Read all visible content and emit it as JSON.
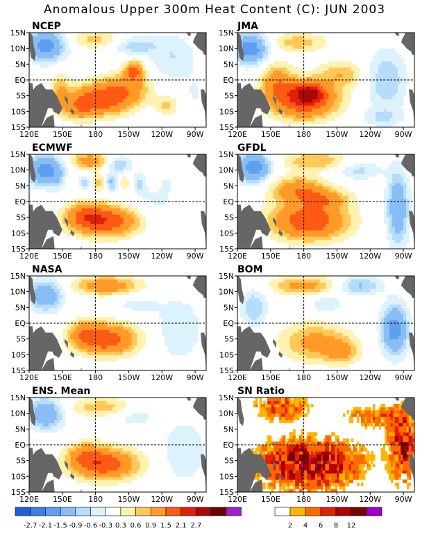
{
  "title": "Anomalous Upper 300m Heat Content (C): JUN 2003",
  "y_ticks": [
    "15N",
    "10N",
    "5N",
    "EQ",
    "5S",
    "10S",
    "15S"
  ],
  "x_ticks": [
    "120E",
    "150E",
    "180",
    "150W",
    "120W",
    "90W"
  ],
  "panels": [
    {
      "name": "NCEP",
      "kind": "ncep"
    },
    {
      "name": "JMA",
      "kind": "jma"
    },
    {
      "name": "ECMWF",
      "kind": "ecmwf"
    },
    {
      "name": "GFDL",
      "kind": "gfdl"
    },
    {
      "name": "NASA",
      "kind": "nasa"
    },
    {
      "name": "BOM",
      "kind": "bom"
    },
    {
      "name": "ENS. Mean",
      "kind": "ens"
    },
    {
      "name": "SN Ratio",
      "kind": "sn"
    }
  ],
  "anomaly_colorbar": {
    "colors": [
      "#1f5fd6",
      "#3a7fe6",
      "#5e9ff0",
      "#88bdf5",
      "#b5dcfa",
      "#dcf2fc",
      "#ffffff",
      "#fff2b0",
      "#ffc857",
      "#ff9a28",
      "#ff5a14",
      "#e01e0a",
      "#a80806",
      "#6a0000",
      "#a020c8"
    ],
    "labels": [
      "-2.7",
      "-2.1",
      "-1.5",
      "-0.9",
      "-0.6",
      "-0.3",
      "0.3",
      "0.6",
      "0.9",
      "1.5",
      "2.1",
      "2.7"
    ]
  },
  "sn_colorbar": {
    "colors": [
      "#ffffff",
      "#ffb400",
      "#ff6a00",
      "#e02000",
      "#b40000",
      "#7a0000",
      "#9a00c8"
    ],
    "labels": [
      "2",
      "4",
      "6",
      "8",
      "12"
    ]
  },
  "colors": {
    "land": "#666666",
    "frame": "#000000"
  }
}
